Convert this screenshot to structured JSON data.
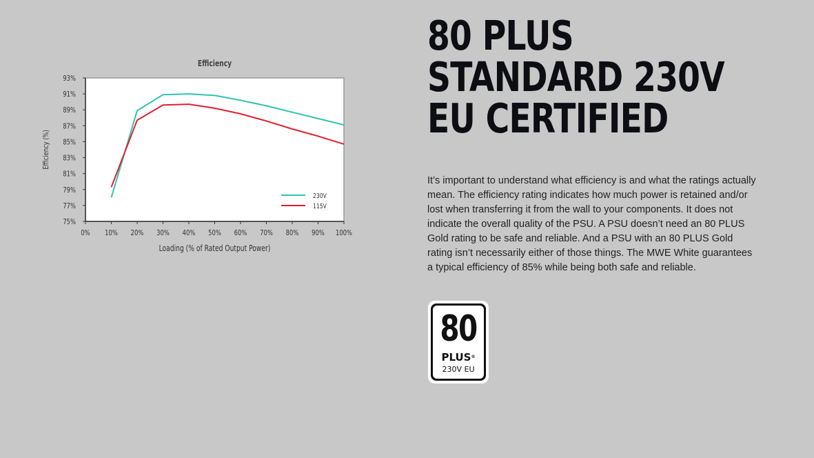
{
  "heading": {
    "line1": "80 PLUS",
    "line2": "STANDARD 230V",
    "line3": "EU CERTIFIED"
  },
  "description": "It’s important to understand what efficiency is and what the ratings actually mean. The efficiency rating indicates how much power is retained and/or lost when transferring it from the wall to your components. It does not indicate the overall quality of the PSU. A PSU doesn’t need an 80 PLUS Gold rating to be safe and reliable. And a PSU with an 80 PLUS Gold rating isn’t necessarily either of those things. The MWE White guarantees a typical efficiency of 85% while being both safe and reliable.",
  "badge": {
    "number": "80",
    "plus": "PLUS",
    "registered": "®",
    "cert": "230V EU"
  },
  "colors": {
    "s230": "#2ec4b0",
    "s115": "#e0202e",
    "axis": "#333333",
    "grid": "#9a9a9a"
  },
  "chart_data": {
    "type": "line",
    "title": "Efficiency",
    "xlabel": "Loading (% of Rated Output Power)",
    "ylabel": "Efficiency (%)",
    "xticks": [
      "0%",
      "10%",
      "20%",
      "30%",
      "40%",
      "50%",
      "60%",
      "70%",
      "80%",
      "90%",
      "100%"
    ],
    "yticks": [
      "75%",
      "77%",
      "79%",
      "81%",
      "83%",
      "85%",
      "87%",
      "89%",
      "91%",
      "93%"
    ],
    "xlim": [
      0,
      100
    ],
    "ylim": [
      75,
      93
    ],
    "legend_position": "bottom-right",
    "series": [
      {
        "name": "230V",
        "color_key": "s230",
        "x": [
          10,
          20,
          30,
          40,
          50,
          60,
          70,
          80,
          90,
          100
        ],
        "y": [
          78.0,
          88.9,
          90.9,
          91.0,
          90.8,
          90.2,
          89.5,
          88.7,
          87.9,
          87.1
        ]
      },
      {
        "name": "115V",
        "color_key": "s115",
        "x": [
          10,
          20,
          30,
          40,
          50,
          60,
          70,
          80,
          90,
          100
        ],
        "y": [
          79.3,
          87.7,
          89.6,
          89.7,
          89.2,
          88.5,
          87.6,
          86.6,
          85.7,
          84.7
        ]
      }
    ]
  }
}
